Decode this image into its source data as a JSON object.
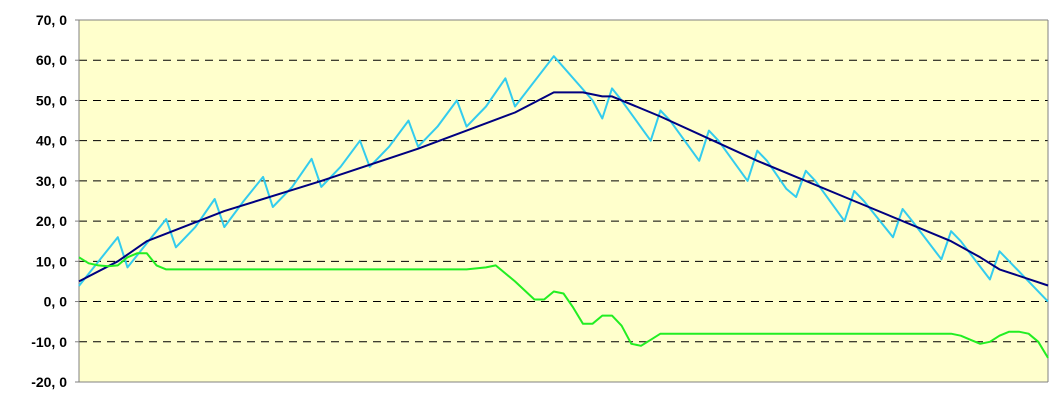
{
  "colors": {
    "plot_background": "#ffffcc",
    "grid": "#000000",
    "axis": "#808080",
    "series_zigzag": "#33ccee",
    "series_smooth": "#000080",
    "series_green": "#22ee22"
  },
  "chart_data": {
    "type": "line",
    "title": "",
    "xlabel": "",
    "ylabel": "",
    "ylim": [
      -20,
      70
    ],
    "ytick_step": 10,
    "y_tick_labels": [
      "70, 0",
      "60, 0",
      "50, 0",
      "40, 0",
      "30, 0",
      "20, 0",
      "10, 0",
      "0, 0",
      "-10, 0",
      "-20, 0"
    ],
    "grid": "horizontal dashed",
    "legend": "none",
    "x_range": [
      0,
      100
    ],
    "series": [
      {
        "color_key": "series_zigzag",
        "points": [
          [
            0,
            3.9
          ],
          [
            4,
            16
          ],
          [
            5,
            8.5
          ],
          [
            7,
            14.5
          ],
          [
            9,
            20.5
          ],
          [
            10,
            13.5
          ],
          [
            12,
            18.5
          ],
          [
            14,
            25.5
          ],
          [
            15,
            18.5
          ],
          [
            17,
            25
          ],
          [
            19,
            31
          ],
          [
            20,
            23.5
          ],
          [
            22,
            28.5
          ],
          [
            24,
            35.5
          ],
          [
            25,
            28.5
          ],
          [
            27,
            33.5
          ],
          [
            29,
            40
          ],
          [
            30,
            33.5
          ],
          [
            32,
            38.5
          ],
          [
            34,
            45
          ],
          [
            35,
            38.5
          ],
          [
            37,
            43.5
          ],
          [
            39,
            50
          ],
          [
            40,
            43.5
          ],
          [
            42,
            48.5
          ],
          [
            44,
            55.5
          ],
          [
            45,
            48.5
          ],
          [
            49,
            61
          ],
          [
            53,
            50
          ],
          [
            54,
            45.5
          ],
          [
            55,
            53
          ],
          [
            56,
            50
          ],
          [
            59,
            40
          ],
          [
            60,
            47.5
          ],
          [
            61,
            45
          ],
          [
            64,
            35
          ],
          [
            65,
            42.5
          ],
          [
            66,
            40
          ],
          [
            69,
            30
          ],
          [
            70,
            37.5
          ],
          [
            71,
            35
          ],
          [
            73,
            28
          ],
          [
            74,
            26
          ],
          [
            75,
            32.5
          ],
          [
            76,
            30
          ],
          [
            79,
            20
          ],
          [
            80,
            27.5
          ],
          [
            81,
            25
          ],
          [
            84,
            16
          ],
          [
            85,
            23
          ],
          [
            86,
            20
          ],
          [
            89,
            10.5
          ],
          [
            90,
            17.5
          ],
          [
            91,
            15
          ],
          [
            94,
            5.5
          ],
          [
            95,
            12.5
          ],
          [
            96,
            10
          ],
          [
            100,
            0
          ]
        ]
      },
      {
        "color_key": "series_smooth",
        "points": [
          [
            0,
            5
          ],
          [
            4,
            10
          ],
          [
            7,
            15
          ],
          [
            15,
            22.5
          ],
          [
            25,
            30
          ],
          [
            35,
            38
          ],
          [
            45,
            47
          ],
          [
            49,
            52
          ],
          [
            52,
            52
          ],
          [
            54,
            51
          ],
          [
            55,
            51
          ],
          [
            60,
            46
          ],
          [
            70,
            35
          ],
          [
            80,
            25
          ],
          [
            90,
            15
          ],
          [
            93,
            11
          ],
          [
            95,
            8
          ],
          [
            100,
            4
          ]
        ]
      },
      {
        "color_key": "series_green",
        "points": [
          [
            0,
            11
          ],
          [
            1,
            9.5
          ],
          [
            2,
            9
          ],
          [
            3,
            8.8
          ],
          [
            4,
            9
          ],
          [
            5,
            11
          ],
          [
            6,
            12
          ],
          [
            7,
            12
          ],
          [
            8,
            9
          ],
          [
            9,
            8
          ],
          [
            15,
            8
          ],
          [
            20,
            8
          ],
          [
            25,
            8
          ],
          [
            30,
            8
          ],
          [
            35,
            8
          ],
          [
            40,
            8
          ],
          [
            42,
            8.5
          ],
          [
            43,
            9
          ],
          [
            45,
            5
          ],
          [
            47,
            0.5
          ],
          [
            48,
            0.5
          ],
          [
            49,
            2.5
          ],
          [
            50,
            2
          ],
          [
            51,
            -1.5
          ],
          [
            52,
            -5.5
          ],
          [
            53,
            -5.5
          ],
          [
            54,
            -3.5
          ],
          [
            55,
            -3.5
          ],
          [
            56,
            -6
          ],
          [
            57,
            -10.5
          ],
          [
            58,
            -11
          ],
          [
            59,
            -9.5
          ],
          [
            60,
            -8
          ],
          [
            65,
            -8
          ],
          [
            70,
            -8
          ],
          [
            75,
            -8
          ],
          [
            80,
            -8
          ],
          [
            85,
            -8
          ],
          [
            90,
            -8
          ],
          [
            91,
            -8.5
          ],
          [
            92,
            -9.5
          ],
          [
            93,
            -10.5
          ],
          [
            94,
            -10
          ],
          [
            95,
            -8.5
          ],
          [
            96,
            -7.5
          ],
          [
            97,
            -7.5
          ],
          [
            98,
            -8
          ],
          [
            99,
            -10
          ],
          [
            100,
            -14
          ]
        ]
      }
    ]
  }
}
